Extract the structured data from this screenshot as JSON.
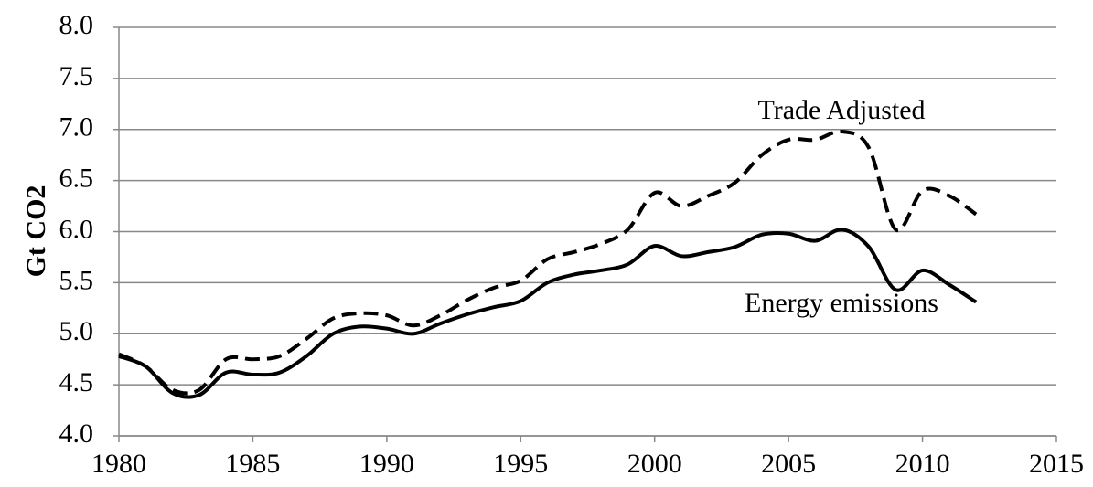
{
  "chart_data": {
    "type": "line",
    "y_label": "Gt CO2",
    "x": [
      1980,
      1981,
      1982,
      1983,
      1984,
      1985,
      1986,
      1987,
      1988,
      1989,
      1990,
      1991,
      1992,
      1993,
      1994,
      1995,
      1996,
      1997,
      1998,
      1999,
      2000,
      2001,
      2002,
      2003,
      2004,
      2005,
      2006,
      2007,
      2008,
      2009,
      2010,
      2011,
      2012
    ],
    "series": [
      {
        "name": "Trade Adjusted",
        "color": "#000000",
        "dash": true,
        "values": [
          4.8,
          4.68,
          4.45,
          4.45,
          4.75,
          4.75,
          4.78,
          4.95,
          5.15,
          5.2,
          5.18,
          5.08,
          5.18,
          5.33,
          5.45,
          5.52,
          5.73,
          5.8,
          5.88,
          6.02,
          6.38,
          6.25,
          6.35,
          6.48,
          6.75,
          6.9,
          6.9,
          6.98,
          6.82,
          6.02,
          6.4,
          6.35,
          6.17
        ]
      },
      {
        "name": "Energy emissions",
        "color": "#000000",
        "dash": false,
        "values": [
          4.78,
          4.68,
          4.42,
          4.4,
          4.62,
          4.6,
          4.62,
          4.78,
          5.0,
          5.07,
          5.05,
          5.0,
          5.1,
          5.19,
          5.26,
          5.32,
          5.5,
          5.58,
          5.62,
          5.68,
          5.86,
          5.76,
          5.8,
          5.85,
          5.97,
          5.98,
          5.91,
          6.02,
          5.85,
          5.43,
          5.62,
          5.48,
          5.31
        ]
      }
    ],
    "xlim": [
      1980,
      2015
    ],
    "xticks": [
      1980,
      1985,
      1990,
      1995,
      2000,
      2005,
      2010,
      2015
    ],
    "ylim": [
      4,
      8
    ],
    "yticks": [
      {
        "value": 4,
        "label": "4.0"
      },
      4.5,
      {
        "value": 5,
        "label": "5.0"
      },
      5.5,
      {
        "value": 6,
        "label": "6.0"
      },
      6.5,
      {
        "value": 7,
        "label": "7.0"
      },
      7.5,
      {
        "value": 8,
        "label": "8.0"
      }
    ],
    "grid": true
  }
}
